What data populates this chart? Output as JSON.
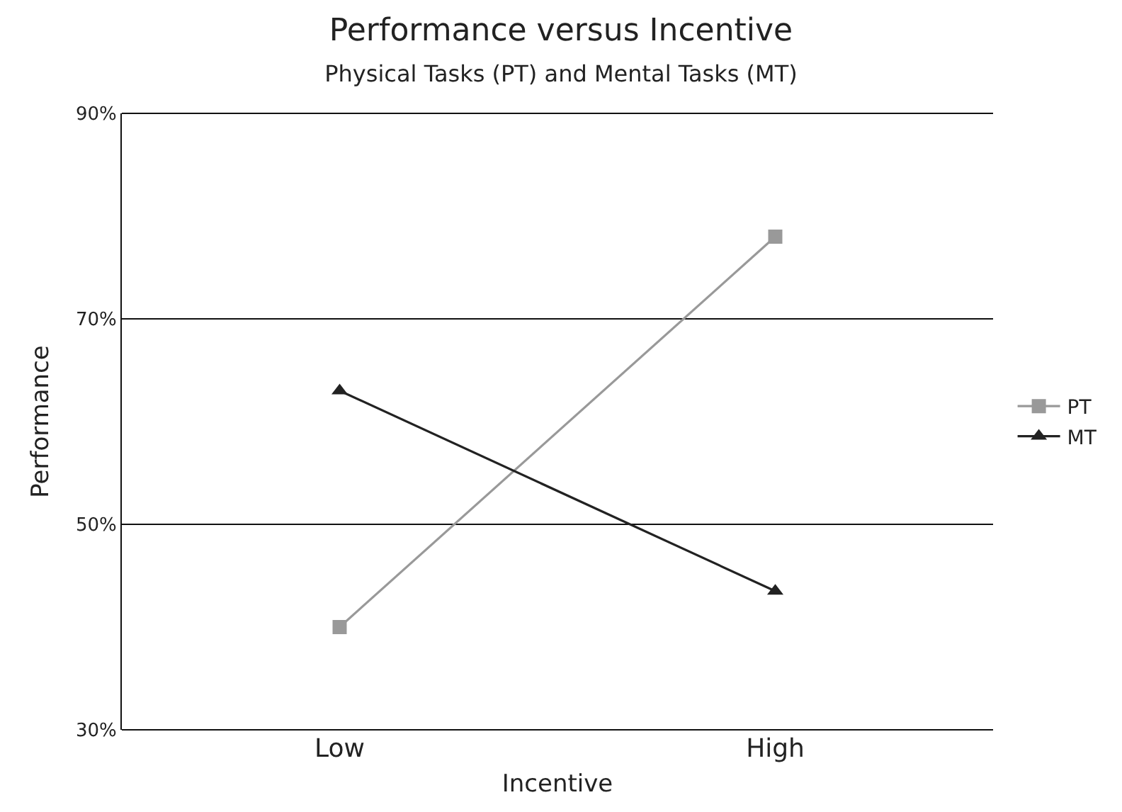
{
  "chart_data": {
    "type": "line",
    "title": "Performance versus Incentive",
    "subtitle": "Physical Tasks (PT) and Mental Tasks (MT)",
    "xlabel": "Incentive",
    "ylabel": "Performance",
    "categories": [
      "Low",
      "High"
    ],
    "series": [
      {
        "name": "PT",
        "color": "#999999",
        "marker": "square",
        "values": [
          40,
          78
        ]
      },
      {
        "name": "MT",
        "color": "#222222",
        "marker": "triangle",
        "values": [
          63,
          43.5
        ]
      }
    ],
    "ylim": [
      30,
      90
    ],
    "yticks": [
      {
        "value": 30,
        "label": "30%"
      },
      {
        "value": 50,
        "label": "50%"
      },
      {
        "value": 70,
        "label": "70%"
      },
      {
        "value": 90,
        "label": "90%"
      }
    ],
    "grid": "y",
    "legend": "right",
    "line_style": "solid"
  }
}
